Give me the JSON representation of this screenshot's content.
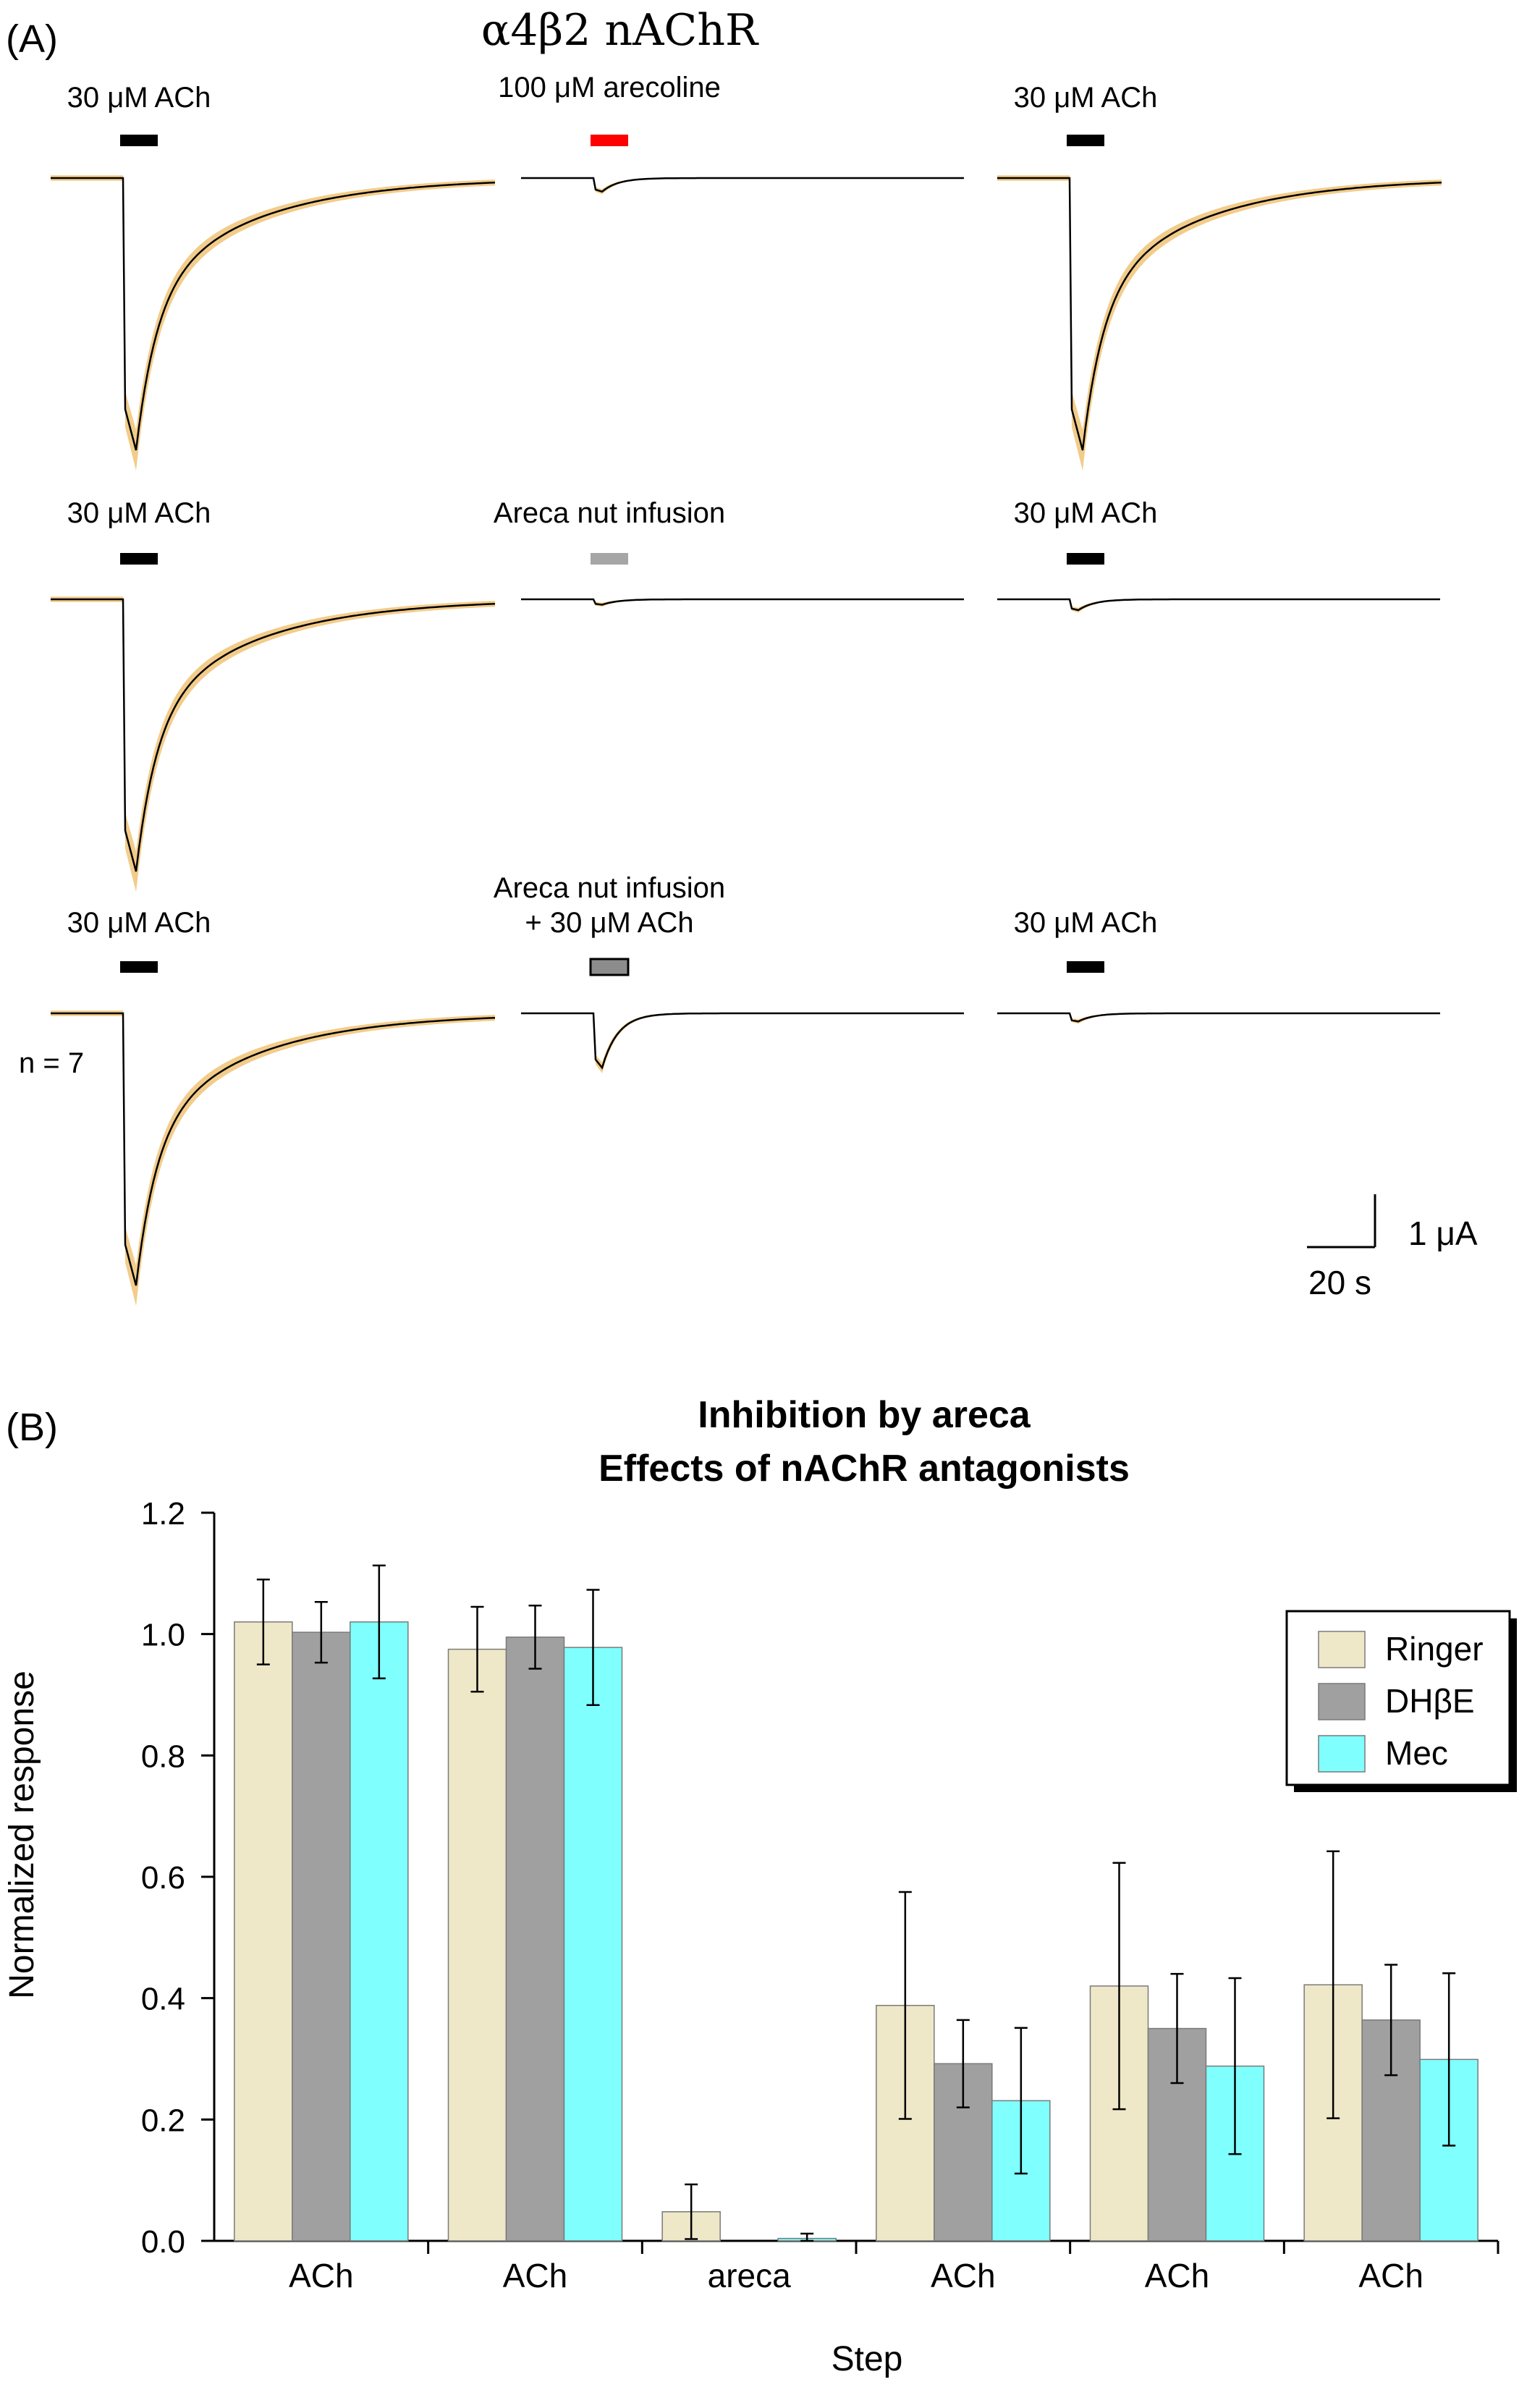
{
  "panel_a": {
    "panel_label": "(A)",
    "title": "α4β2 nAChR",
    "rows": [
      {
        "traces": [
          {
            "label": "30 μM ACh",
            "bar_color": "#000000",
            "bar_style": "solid",
            "peak_current": 1.0,
            "decay": "slow"
          },
          {
            "label": "100 μM arecoline",
            "bar_color": "#ff0000",
            "bar_style": "solid",
            "peak_current": 0.05,
            "decay": "fast"
          },
          {
            "label": "30 μM ACh",
            "bar_color": "#000000",
            "bar_style": "solid",
            "peak_current": 1.0,
            "decay": "slow"
          }
        ]
      },
      {
        "traces": [
          {
            "label": "30 μM ACh",
            "bar_color": "#000000",
            "bar_style": "solid",
            "peak_current": 1.0,
            "decay": "slow"
          },
          {
            "label": "Areca nut infusion",
            "bar_color": "#a6a6a6",
            "bar_style": "solid",
            "peak_current": 0.02,
            "decay": "fast"
          },
          {
            "label": "30 μM ACh",
            "bar_color": "#000000",
            "bar_style": "solid",
            "peak_current": 0.04,
            "decay": "fast"
          }
        ]
      },
      {
        "n_label": "n = 7",
        "traces": [
          {
            "label": "30 μM ACh",
            "bar_color": "#000000",
            "bar_style": "solid",
            "peak_current": 1.0,
            "decay": "slow"
          },
          {
            "label": "Areca nut infusion",
            "label2": "+ 30 μM ACh",
            "bar_color": "#8c8c8c",
            "bar_style": "outlined",
            "peak_current": 0.2,
            "decay": "fast"
          },
          {
            "label": "30 μM ACh",
            "bar_color": "#000000",
            "bar_style": "solid",
            "peak_current": 0.03,
            "decay": "fast"
          }
        ]
      }
    ],
    "scale_bar": {
      "current_label": "1 μA",
      "time_label": "20 s"
    },
    "trace_color": "#000000",
    "band_color": "#f2cc8a"
  },
  "chart_data": {
    "type": "bar",
    "panel_label": "(B)",
    "title": "Inhibition by areca",
    "subtitle": "Effects of nAChR antagonists",
    "xlabel": "Step",
    "ylabel": "Normalized response",
    "ylim": [
      0,
      1.2
    ],
    "yticks": [
      "0.0",
      "0.2",
      "0.4",
      "0.6",
      "0.8",
      "1.0",
      "1.2"
    ],
    "categories": [
      "ACh",
      "ACh",
      "areca",
      "ACh",
      "ACh",
      "ACh"
    ],
    "series": [
      {
        "name": "Ringer",
        "color": "#efe8c8",
        "values": [
          1.02,
          0.975,
          0.048,
          0.388,
          0.42,
          0.422
        ],
        "errors": [
          0.07,
          0.07,
          0.045,
          0.187,
          0.203,
          0.22
        ]
      },
      {
        "name": "DHβE",
        "color": "#a0a0a0",
        "values": [
          1.003,
          0.995,
          0.0,
          0.292,
          0.35,
          0.364
        ],
        "errors": [
          0.05,
          0.052,
          0.0,
          0.072,
          0.09,
          0.091
        ]
      },
      {
        "name": "Mec",
        "color": "#80ffff",
        "values": [
          1.02,
          0.978,
          0.004,
          0.231,
          0.288,
          0.299
        ],
        "errors": [
          0.093,
          0.095,
          0.008,
          0.12,
          0.145,
          0.142
        ]
      }
    ],
    "legend_position": "top-right",
    "grid": false
  }
}
